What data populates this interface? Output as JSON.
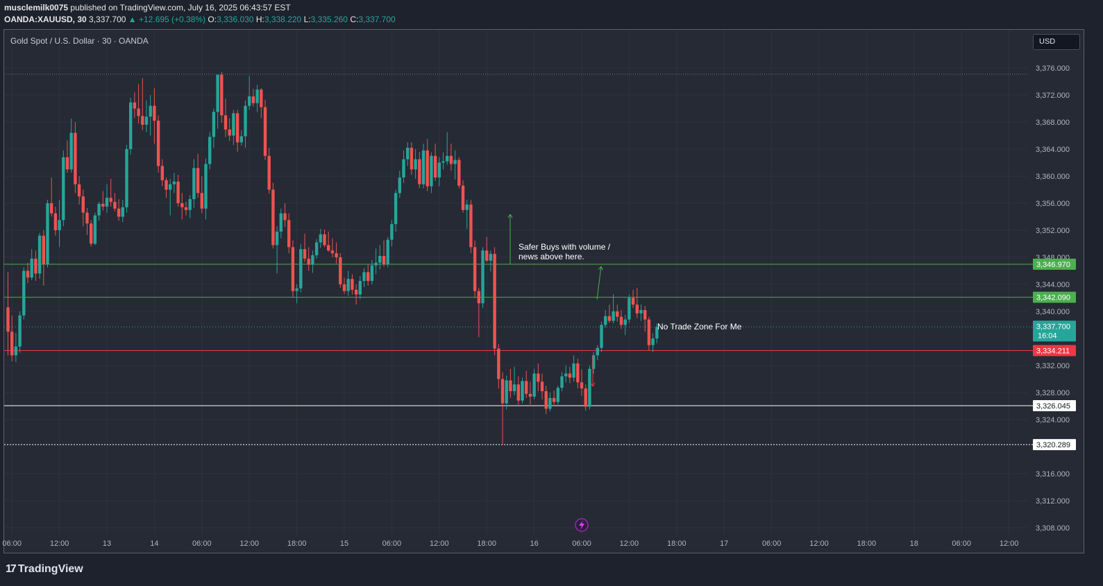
{
  "header": {
    "author": "musclemilk0075",
    "published": "published on TradingView.com, July 16, 2025 06:43:57 EST",
    "symbol": "OANDA:XAUUSD, 30",
    "last": "3,337.700",
    "change": "+12.695 (+0.38%)",
    "o_label": "O:",
    "o": "3,336.030",
    "h_label": "H:",
    "h": "3,338.220",
    "l_label": "L:",
    "l": "3,335.260",
    "c_label": "C:",
    "c": "3,337.700"
  },
  "chart_title": "Gold Spot / U.S. Dollar · 30 · OANDA",
  "currency_button": "USD",
  "brand": "TradingView",
  "lightning_icon": "lightning-icon",
  "colors": {
    "up": "#26a69a",
    "down": "#ef5350",
    "green_line": "#4caf50",
    "red_line": "#f23645",
    "bg": "#262a35"
  },
  "chart_data": {
    "type": "candlestick",
    "title": "Gold Spot / U.S. Dollar · 30 · OANDA",
    "ylim": [
      3306,
      3378
    ],
    "y_ticks": [
      "3,376.000",
      "3,372.000",
      "3,368.000",
      "3,364.000",
      "3,360.000",
      "3,356.000",
      "3,352.000",
      "3,348.000",
      "3,344.000",
      "3,340.000",
      "3,332.000",
      "3,328.000",
      "3,324.000",
      "3,316.000",
      "3,312.000",
      "3,308.000"
    ],
    "y_tick_values": [
      3376,
      3372,
      3368,
      3364,
      3360,
      3356,
      3352,
      3348,
      3344,
      3340,
      3332,
      3328,
      3324,
      3316,
      3312,
      3308
    ],
    "x_ticks": [
      "06:00",
      "12:00",
      "13",
      "14",
      "06:00",
      "12:00",
      "18:00",
      "15",
      "06:00",
      "12:00",
      "18:00",
      "16",
      "06:00",
      "12:00",
      "18:00",
      "17",
      "06:00",
      "12:00",
      "18:00",
      "18",
      "06:00",
      "12:00"
    ],
    "x_tick_index": [
      1,
      13,
      25,
      37,
      49,
      61,
      73,
      85,
      97,
      109,
      121,
      133,
      145,
      157,
      169,
      181,
      193,
      205,
      217,
      229,
      241,
      253
    ],
    "candles": [
      {
        "o": 3340.6,
        "h": 3345.8,
        "l": 3333.5,
        "c": 3337.0
      },
      {
        "o": 3337.0,
        "h": 3339.4,
        "l": 3332.6,
        "c": 3333.5
      },
      {
        "o": 3333.5,
        "h": 3336.8,
        "l": 3332.5,
        "c": 3334.8
      },
      {
        "o": 3334.8,
        "h": 3340.0,
        "l": 3333.9,
        "c": 3339.4
      },
      {
        "o": 3339.4,
        "h": 3346.5,
        "l": 3338.8,
        "c": 3346.0
      },
      {
        "o": 3346.0,
        "h": 3347.2,
        "l": 3344.2,
        "c": 3345.0
      },
      {
        "o": 3345.0,
        "h": 3349.2,
        "l": 3344.6,
        "c": 3347.8
      },
      {
        "o": 3347.8,
        "h": 3349.0,
        "l": 3344.5,
        "c": 3345.6
      },
      {
        "o": 3345.6,
        "h": 3351.6,
        "l": 3344.8,
        "c": 3351.2
      },
      {
        "o": 3351.2,
        "h": 3352.0,
        "l": 3343.8,
        "c": 3347.0
      },
      {
        "o": 3347.0,
        "h": 3356.5,
        "l": 3346.5,
        "c": 3356.0
      },
      {
        "o": 3356.0,
        "h": 3359.8,
        "l": 3354.0,
        "c": 3354.5
      },
      {
        "o": 3354.5,
        "h": 3355.5,
        "l": 3351.2,
        "c": 3352.0
      },
      {
        "o": 3352.0,
        "h": 3356.5,
        "l": 3349.5,
        "c": 3353.5
      },
      {
        "o": 3353.5,
        "h": 3363.8,
        "l": 3352.6,
        "c": 3362.8
      },
      {
        "o": 3362.8,
        "h": 3365.3,
        "l": 3360.5,
        "c": 3361.0
      },
      {
        "o": 3361.0,
        "h": 3368.5,
        "l": 3360.5,
        "c": 3366.4
      },
      {
        "o": 3366.4,
        "h": 3368.0,
        "l": 3357.5,
        "c": 3358.8
      },
      {
        "o": 3358.8,
        "h": 3360.0,
        "l": 3355.8,
        "c": 3357.0
      },
      {
        "o": 3357.0,
        "h": 3358.0,
        "l": 3352.6,
        "c": 3354.6
      },
      {
        "o": 3354.6,
        "h": 3355.3,
        "l": 3351.3,
        "c": 3353.0
      },
      {
        "o": 3353.0,
        "h": 3353.5,
        "l": 3349.6,
        "c": 3350.0
      },
      {
        "o": 3350.0,
        "h": 3354.6,
        "l": 3349.8,
        "c": 3354.2
      },
      {
        "o": 3354.2,
        "h": 3356.2,
        "l": 3353.4,
        "c": 3355.9
      },
      {
        "o": 3355.9,
        "h": 3357.8,
        "l": 3354.9,
        "c": 3355.5
      },
      {
        "o": 3355.5,
        "h": 3358.8,
        "l": 3354.6,
        "c": 3356.8
      },
      {
        "o": 3356.8,
        "h": 3359.6,
        "l": 3355.5,
        "c": 3356.2
      },
      {
        "o": 3356.2,
        "h": 3357.5,
        "l": 3354.8,
        "c": 3355.2
      },
      {
        "o": 3355.2,
        "h": 3356.6,
        "l": 3353.4,
        "c": 3354.0
      },
      {
        "o": 3354.0,
        "h": 3356.5,
        "l": 3353.2,
        "c": 3355.4
      },
      {
        "o": 3355.4,
        "h": 3364.6,
        "l": 3354.6,
        "c": 3364.0
      },
      {
        "o": 3364.0,
        "h": 3371.6,
        "l": 3363.2,
        "c": 3370.9
      },
      {
        "o": 3370.9,
        "h": 3372.4,
        "l": 3368.6,
        "c": 3370.0
      },
      {
        "o": 3370.0,
        "h": 3373.6,
        "l": 3367.8,
        "c": 3368.9
      },
      {
        "o": 3368.9,
        "h": 3374.5,
        "l": 3366.8,
        "c": 3367.6
      },
      {
        "o": 3367.6,
        "h": 3371.2,
        "l": 3366.5,
        "c": 3368.8
      },
      {
        "o": 3368.8,
        "h": 3372.0,
        "l": 3366.0,
        "c": 3370.4
      },
      {
        "o": 3370.4,
        "h": 3373.0,
        "l": 3364.8,
        "c": 3368.2
      },
      {
        "o": 3368.2,
        "h": 3369.0,
        "l": 3360.5,
        "c": 3361.5
      },
      {
        "o": 3361.5,
        "h": 3362.5,
        "l": 3358.5,
        "c": 3359.4
      },
      {
        "o": 3359.4,
        "h": 3359.8,
        "l": 3356.8,
        "c": 3358.0
      },
      {
        "o": 3358.0,
        "h": 3359.6,
        "l": 3354.2,
        "c": 3358.8
      },
      {
        "o": 3358.8,
        "h": 3360.5,
        "l": 3357.5,
        "c": 3359.2
      },
      {
        "o": 3359.2,
        "h": 3360.2,
        "l": 3355.5,
        "c": 3356.0
      },
      {
        "o": 3356.0,
        "h": 3357.5,
        "l": 3353.6,
        "c": 3355.4
      },
      {
        "o": 3355.4,
        "h": 3356.2,
        "l": 3354.2,
        "c": 3355.0
      },
      {
        "o": 3355.0,
        "h": 3357.2,
        "l": 3353.8,
        "c": 3356.6
      },
      {
        "o": 3356.6,
        "h": 3362.5,
        "l": 3355.3,
        "c": 3361.2
      },
      {
        "o": 3361.2,
        "h": 3363.3,
        "l": 3356.8,
        "c": 3357.5
      },
      {
        "o": 3357.5,
        "h": 3360.0,
        "l": 3354.5,
        "c": 3355.2
      },
      {
        "o": 3355.2,
        "h": 3362.6,
        "l": 3353.6,
        "c": 3361.8
      },
      {
        "o": 3361.8,
        "h": 3366.5,
        "l": 3361.0,
        "c": 3365.8
      },
      {
        "o": 3365.8,
        "h": 3370.0,
        "l": 3364.2,
        "c": 3369.5
      },
      {
        "o": 3369.5,
        "h": 3375.0,
        "l": 3367.0,
        "c": 3375.0
      },
      {
        "o": 3375.0,
        "h": 3375.4,
        "l": 3367.9,
        "c": 3369.0
      },
      {
        "o": 3369.0,
        "h": 3371.5,
        "l": 3365.8,
        "c": 3366.9
      },
      {
        "o": 3366.9,
        "h": 3368.6,
        "l": 3365.2,
        "c": 3366.0
      },
      {
        "o": 3366.0,
        "h": 3369.8,
        "l": 3364.6,
        "c": 3369.3
      },
      {
        "o": 3369.3,
        "h": 3369.8,
        "l": 3363.6,
        "c": 3365.0
      },
      {
        "o": 3365.0,
        "h": 3366.8,
        "l": 3364.5,
        "c": 3365.9
      },
      {
        "o": 3365.9,
        "h": 3371.2,
        "l": 3364.2,
        "c": 3370.4
      },
      {
        "o": 3370.4,
        "h": 3374.8,
        "l": 3369.8,
        "c": 3371.8
      },
      {
        "o": 3371.8,
        "h": 3372.9,
        "l": 3370.3,
        "c": 3370.8
      },
      {
        "o": 3370.8,
        "h": 3373.5,
        "l": 3369.5,
        "c": 3372.8
      },
      {
        "o": 3372.8,
        "h": 3373.0,
        "l": 3368.6,
        "c": 3370.2
      },
      {
        "o": 3370.2,
        "h": 3371.3,
        "l": 3362.4,
        "c": 3363.0
      },
      {
        "o": 3363.0,
        "h": 3364.2,
        "l": 3357.4,
        "c": 3358.0
      },
      {
        "o": 3358.0,
        "h": 3359.0,
        "l": 3349.3,
        "c": 3349.8
      },
      {
        "o": 3349.8,
        "h": 3352.6,
        "l": 3345.6,
        "c": 3351.8
      },
      {
        "o": 3351.8,
        "h": 3355.2,
        "l": 3350.8,
        "c": 3354.5
      },
      {
        "o": 3354.5,
        "h": 3356.0,
        "l": 3352.5,
        "c": 3353.5
      },
      {
        "o": 3353.5,
        "h": 3354.5,
        "l": 3348.6,
        "c": 3349.5
      },
      {
        "o": 3349.5,
        "h": 3350.5,
        "l": 3342.0,
        "c": 3343.0
      },
      {
        "o": 3343.0,
        "h": 3344.0,
        "l": 3341.2,
        "c": 3343.4
      },
      {
        "o": 3343.4,
        "h": 3350.0,
        "l": 3342.8,
        "c": 3349.2
      },
      {
        "o": 3349.2,
        "h": 3351.5,
        "l": 3347.3,
        "c": 3347.8
      },
      {
        "o": 3347.8,
        "h": 3349.5,
        "l": 3346.0,
        "c": 3346.9
      },
      {
        "o": 3346.9,
        "h": 3349.0,
        "l": 3345.7,
        "c": 3348.3
      },
      {
        "o": 3348.3,
        "h": 3350.7,
        "l": 3347.8,
        "c": 3350.2
      },
      {
        "o": 3350.2,
        "h": 3352.2,
        "l": 3349.4,
        "c": 3351.4
      },
      {
        "o": 3351.4,
        "h": 3352.1,
        "l": 3349.5,
        "c": 3349.8
      },
      {
        "o": 3349.8,
        "h": 3351.8,
        "l": 3348.8,
        "c": 3349.0
      },
      {
        "o": 3349.0,
        "h": 3350.8,
        "l": 3348.0,
        "c": 3348.6
      },
      {
        "o": 3348.6,
        "h": 3350.2,
        "l": 3347.1,
        "c": 3348.0
      },
      {
        "o": 3348.0,
        "h": 3348.6,
        "l": 3343.5,
        "c": 3344.0
      },
      {
        "o": 3344.0,
        "h": 3345.0,
        "l": 3342.6,
        "c": 3343.0
      },
      {
        "o": 3343.0,
        "h": 3346.0,
        "l": 3342.3,
        "c": 3344.8
      },
      {
        "o": 3344.8,
        "h": 3345.5,
        "l": 3342.5,
        "c": 3343.2
      },
      {
        "o": 3343.2,
        "h": 3344.0,
        "l": 3341.0,
        "c": 3342.5
      },
      {
        "o": 3342.5,
        "h": 3345.2,
        "l": 3341.8,
        "c": 3344.5
      },
      {
        "o": 3344.5,
        "h": 3346.4,
        "l": 3343.6,
        "c": 3345.8
      },
      {
        "o": 3345.8,
        "h": 3347.0,
        "l": 3343.8,
        "c": 3344.5
      },
      {
        "o": 3344.5,
        "h": 3347.6,
        "l": 3344.0,
        "c": 3346.8
      },
      {
        "o": 3346.8,
        "h": 3349.3,
        "l": 3345.5,
        "c": 3347.2
      },
      {
        "o": 3347.2,
        "h": 3349.8,
        "l": 3346.2,
        "c": 3348.2
      },
      {
        "o": 3348.2,
        "h": 3350.5,
        "l": 3346.6,
        "c": 3347.0
      },
      {
        "o": 3347.0,
        "h": 3351.0,
        "l": 3346.5,
        "c": 3350.6
      },
      {
        "o": 3350.6,
        "h": 3353.5,
        "l": 3349.6,
        "c": 3352.9
      },
      {
        "o": 3352.9,
        "h": 3358.0,
        "l": 3351.8,
        "c": 3357.5
      },
      {
        "o": 3357.5,
        "h": 3360.8,
        "l": 3356.8,
        "c": 3359.8
      },
      {
        "o": 3359.8,
        "h": 3363.8,
        "l": 3359.0,
        "c": 3362.5
      },
      {
        "o": 3362.5,
        "h": 3365.0,
        "l": 3361.5,
        "c": 3364.2
      },
      {
        "o": 3364.2,
        "h": 3365.0,
        "l": 3360.2,
        "c": 3361.0
      },
      {
        "o": 3361.0,
        "h": 3364.0,
        "l": 3359.6,
        "c": 3362.5
      },
      {
        "o": 3362.5,
        "h": 3363.6,
        "l": 3358.2,
        "c": 3358.8
      },
      {
        "o": 3358.8,
        "h": 3364.8,
        "l": 3358.2,
        "c": 3363.8
      },
      {
        "o": 3363.8,
        "h": 3365.5,
        "l": 3357.8,
        "c": 3358.5
      },
      {
        "o": 3358.5,
        "h": 3363.5,
        "l": 3357.5,
        "c": 3363.0
      },
      {
        "o": 3363.0,
        "h": 3364.8,
        "l": 3359.3,
        "c": 3359.8
      },
      {
        "o": 3359.8,
        "h": 3362.8,
        "l": 3358.5,
        "c": 3362.0
      },
      {
        "o": 3362.0,
        "h": 3363.5,
        "l": 3361.0,
        "c": 3362.2
      },
      {
        "o": 3362.2,
        "h": 3366.5,
        "l": 3361.7,
        "c": 3363.0
      },
      {
        "o": 3363.0,
        "h": 3364.8,
        "l": 3360.8,
        "c": 3361.8
      },
      {
        "o": 3361.8,
        "h": 3363.8,
        "l": 3359.5,
        "c": 3362.4
      },
      {
        "o": 3362.4,
        "h": 3362.8,
        "l": 3358.2,
        "c": 3358.6
      },
      {
        "o": 3358.6,
        "h": 3359.4,
        "l": 3354.6,
        "c": 3355.0
      },
      {
        "o": 3355.0,
        "h": 3356.5,
        "l": 3352.2,
        "c": 3355.8
      },
      {
        "o": 3355.8,
        "h": 3356.5,
        "l": 3348.6,
        "c": 3349.5
      },
      {
        "o": 3349.5,
        "h": 3350.5,
        "l": 3342.0,
        "c": 3343.0
      },
      {
        "o": 3343.0,
        "h": 3343.5,
        "l": 3336.2,
        "c": 3341.2
      },
      {
        "o": 3341.2,
        "h": 3349.5,
        "l": 3340.5,
        "c": 3349.0
      },
      {
        "o": 3349.0,
        "h": 3351.0,
        "l": 3347.3,
        "c": 3347.5
      },
      {
        "o": 3347.5,
        "h": 3349.0,
        "l": 3345.9,
        "c": 3348.5
      },
      {
        "o": 3348.5,
        "h": 3349.5,
        "l": 3333.5,
        "c": 3334.5
      },
      {
        "o": 3334.5,
        "h": 3335.2,
        "l": 3328.6,
        "c": 3330.0
      },
      {
        "o": 3330.0,
        "h": 3331.0,
        "l": 3320.3,
        "c": 3326.4
      },
      {
        "o": 3326.4,
        "h": 3330.5,
        "l": 3325.5,
        "c": 3329.8
      },
      {
        "o": 3329.8,
        "h": 3331.5,
        "l": 3327.2,
        "c": 3328.2
      },
      {
        "o": 3328.2,
        "h": 3331.8,
        "l": 3327.6,
        "c": 3329.2
      },
      {
        "o": 3329.2,
        "h": 3330.4,
        "l": 3326.2,
        "c": 3326.8
      },
      {
        "o": 3326.8,
        "h": 3330.2,
        "l": 3326.4,
        "c": 3329.7
      },
      {
        "o": 3329.7,
        "h": 3331.2,
        "l": 3327.2,
        "c": 3327.8
      },
      {
        "o": 3327.8,
        "h": 3329.6,
        "l": 3326.2,
        "c": 3327.4
      },
      {
        "o": 3327.4,
        "h": 3331.5,
        "l": 3327.0,
        "c": 3330.8
      },
      {
        "o": 3330.8,
        "h": 3332.3,
        "l": 3328.2,
        "c": 3329.6
      },
      {
        "o": 3329.6,
        "h": 3330.8,
        "l": 3327.0,
        "c": 3328.2
      },
      {
        "o": 3328.2,
        "h": 3329.0,
        "l": 3324.8,
        "c": 3325.6
      },
      {
        "o": 3325.6,
        "h": 3328.0,
        "l": 3325.2,
        "c": 3327.2
      },
      {
        "o": 3327.2,
        "h": 3328.3,
        "l": 3326.0,
        "c": 3326.6
      },
      {
        "o": 3326.6,
        "h": 3329.0,
        "l": 3326.2,
        "c": 3328.7
      },
      {
        "o": 3328.7,
        "h": 3331.0,
        "l": 3328.2,
        "c": 3330.4
      },
      {
        "o": 3330.4,
        "h": 3332.0,
        "l": 3329.5,
        "c": 3330.8
      },
      {
        "o": 3330.8,
        "h": 3331.8,
        "l": 3329.4,
        "c": 3330.2
      },
      {
        "o": 3330.2,
        "h": 3333.5,
        "l": 3329.6,
        "c": 3332.3
      },
      {
        "o": 3332.3,
        "h": 3333.0,
        "l": 3328.6,
        "c": 3329.5
      },
      {
        "o": 3329.5,
        "h": 3331.4,
        "l": 3327.5,
        "c": 3328.6
      },
      {
        "o": 3328.6,
        "h": 3329.2,
        "l": 3325.3,
        "c": 3325.9
      },
      {
        "o": 3325.9,
        "h": 3332.0,
        "l": 3325.5,
        "c": 3331.5
      },
      {
        "o": 3331.5,
        "h": 3334.0,
        "l": 3330.8,
        "c": 3333.5
      },
      {
        "o": 3333.5,
        "h": 3335.0,
        "l": 3332.8,
        "c": 3334.6
      },
      {
        "o": 3334.6,
        "h": 3338.5,
        "l": 3334.0,
        "c": 3338.0
      },
      {
        "o": 3338.0,
        "h": 3340.2,
        "l": 3337.6,
        "c": 3339.3
      },
      {
        "o": 3339.3,
        "h": 3341.0,
        "l": 3338.3,
        "c": 3338.6
      },
      {
        "o": 3338.6,
        "h": 3342.5,
        "l": 3338.2,
        "c": 3340.0
      },
      {
        "o": 3340.0,
        "h": 3341.0,
        "l": 3338.5,
        "c": 3339.2
      },
      {
        "o": 3339.2,
        "h": 3340.2,
        "l": 3337.4,
        "c": 3338.0
      },
      {
        "o": 3338.0,
        "h": 3339.5,
        "l": 3336.5,
        "c": 3338.8
      },
      {
        "o": 3338.8,
        "h": 3342.5,
        "l": 3338.3,
        "c": 3342.0
      },
      {
        "o": 3342.0,
        "h": 3343.2,
        "l": 3340.5,
        "c": 3341.0
      },
      {
        "o": 3341.0,
        "h": 3343.5,
        "l": 3339.0,
        "c": 3339.7
      },
      {
        "o": 3339.7,
        "h": 3341.0,
        "l": 3338.6,
        "c": 3340.2
      },
      {
        "o": 3340.2,
        "h": 3340.8,
        "l": 3337.0,
        "c": 3338.8
      },
      {
        "o": 3338.8,
        "h": 3339.2,
        "l": 3334.2,
        "c": 3335.0
      },
      {
        "o": 3335.0,
        "h": 3336.8,
        "l": 3334.0,
        "c": 3336.0
      },
      {
        "o": 3336.0,
        "h": 3338.2,
        "l": 3335.3,
        "c": 3337.7
      }
    ],
    "levels": [
      {
        "price": 3346.97,
        "label": "3,346.970",
        "style": "green"
      },
      {
        "price": 3342.09,
        "label": "3,342.090",
        "style": "green"
      },
      {
        "price": 3337.7,
        "label": "3,337.700",
        "sublabel": "16:04",
        "style": "last"
      },
      {
        "price": 3334.211,
        "label": "3,334.211",
        "style": "red"
      },
      {
        "price": 3326.045,
        "label": "3,326.045",
        "style": "white"
      },
      {
        "price": 3320.289,
        "label": "3,320.289",
        "style": "white-dashed"
      }
    ],
    "annotations": [
      {
        "text_lines": [
          "Safer Buys with volume /",
          "news above here."
        ]
      },
      {
        "text_lines": [
          "No Trade Zone For Me"
        ]
      }
    ]
  }
}
